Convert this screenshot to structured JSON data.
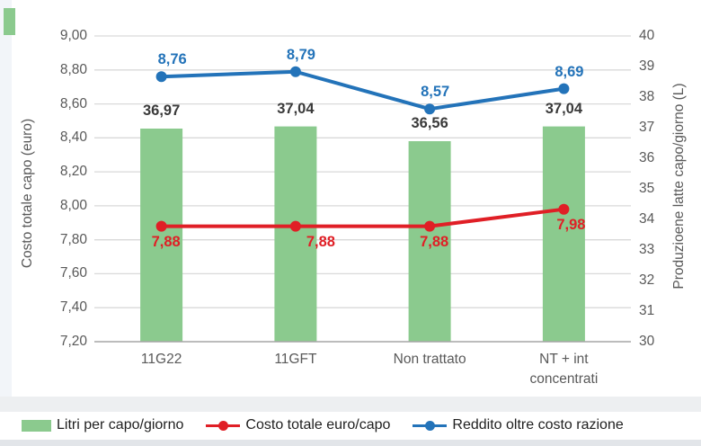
{
  "decor": {
    "background": "#ffffff",
    "left_strip_color": "#f2f5f9",
    "corner_accent_color": "#8bca8e",
    "pre_legend_band_color": "#edeff1",
    "bottom_strip_color": "#e2e5e9",
    "gridline_color": "#d9d9d9",
    "axis_line_color": "#a6a6a6",
    "tick_color": "#595959"
  },
  "chart_data": {
    "type": "combo-bar-line",
    "categories": [
      "11G22",
      "11GFT",
      "Non trattato",
      "NT + int concentrati"
    ],
    "left_axis": {
      "title": "Costo totale capo (euro)",
      "min": 7.2,
      "max": 9.0,
      "tick_values": [
        9.0,
        8.8,
        8.6,
        8.4,
        8.2,
        8.0,
        7.8,
        7.6,
        7.4,
        7.2
      ],
      "tick_labels": [
        "9,00",
        "8,80",
        "8,60",
        "8,40",
        "8,20",
        "8,00",
        "7,80",
        "7,60",
        "7,40",
        "7,20"
      ]
    },
    "right_axis": {
      "title": "Produzioene latte capo/giorno (L)",
      "min": 30,
      "max": 40,
      "tick_values": [
        40,
        39,
        38,
        37,
        36,
        35,
        34,
        33,
        32,
        31,
        30
      ],
      "tick_labels": [
        "40",
        "39",
        "38",
        "37",
        "36",
        "35",
        "34",
        "33",
        "32",
        "31",
        "30"
      ]
    },
    "series": [
      {
        "name": "Litri per capo/giorno",
        "type": "bar",
        "axis": "right",
        "color": "#8bca8e",
        "values": [
          36.97,
          37.04,
          36.56,
          37.04
        ],
        "value_labels": [
          "36,97",
          "37,04",
          "36,56",
          "37,04"
        ],
        "label_color": "#3a3a3a"
      },
      {
        "name": "Costo totale euro/capo",
        "type": "line",
        "axis": "left",
        "color": "#e01f26",
        "values": [
          7.88,
          7.88,
          7.88,
          7.98
        ],
        "value_labels": [
          "7,88",
          "7,88",
          "7,88",
          "7,98"
        ],
        "label_side": "below",
        "label_dx": [
          5,
          28,
          5,
          8
        ]
      },
      {
        "name": "Reddito oltre costo razione",
        "type": "line",
        "axis": "left",
        "color": "#2373b9",
        "values": [
          8.76,
          8.79,
          8.57,
          8.69
        ],
        "value_labels": [
          "8,76",
          "8,79",
          "8,57",
          "8,69"
        ],
        "label_side": "above",
        "label_dx": [
          12,
          6,
          6,
          6
        ]
      }
    ],
    "grid": "horizontal",
    "legend_position": "bottom"
  }
}
